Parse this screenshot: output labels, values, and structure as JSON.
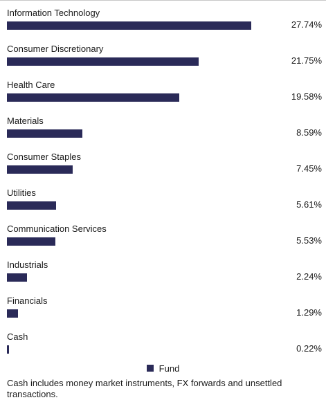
{
  "colors": {
    "bar": "#2a2a58",
    "text": "#1a1a1a",
    "rule": "#c8c8c8"
  },
  "chart_data": {
    "type": "bar",
    "orientation": "horizontal",
    "categories": [
      "Information Technology",
      "Consumer Discretionary",
      "Health Care",
      "Materials",
      "Consumer Staples",
      "Utilities",
      "Communication Services",
      "Industrials",
      "Financials",
      "Cash"
    ],
    "series": [
      {
        "name": "Fund",
        "values": [
          27.74,
          21.75,
          19.58,
          8.59,
          7.45,
          5.61,
          5.53,
          2.24,
          1.29,
          0.22
        ]
      }
    ],
    "value_labels": [
      "27.74%",
      "21.75%",
      "19.58%",
      "8.59%",
      "7.45%",
      "5.61%",
      "5.53%",
      "2.24%",
      "1.29%",
      "0.22%"
    ],
    "legend_position": "bottom"
  },
  "legend": {
    "label": "Fund"
  },
  "footnote": "Cash includes money market instruments, FX forwards and unsettled transactions."
}
